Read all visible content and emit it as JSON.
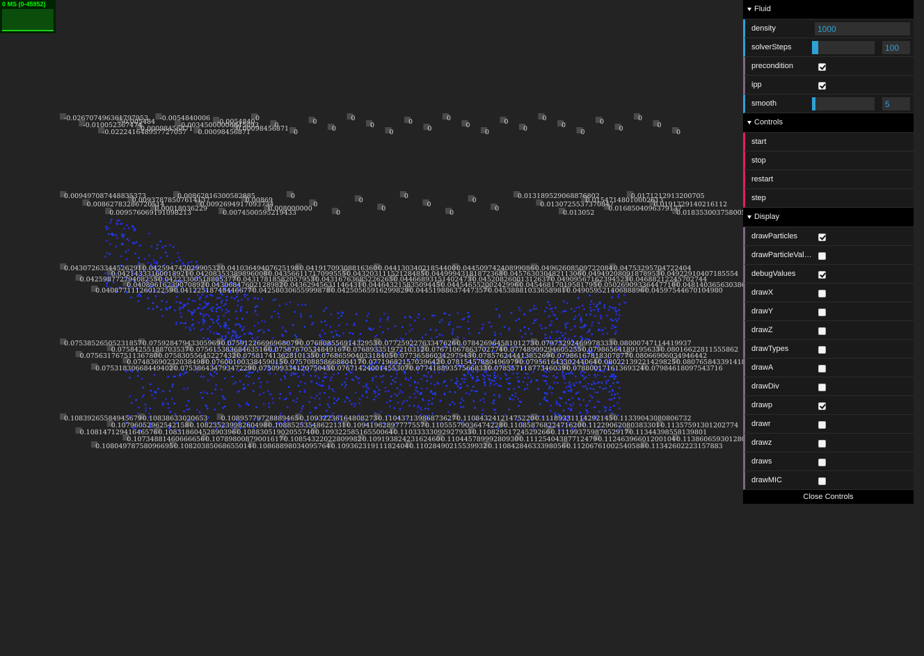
{
  "stats": {
    "label": "0 MS (0-45952)"
  },
  "gui": {
    "folders": [
      {
        "title": "Fluid",
        "rows": [
          {
            "name": "density",
            "kind": "text",
            "value": "1000"
          },
          {
            "name": "solverSteps",
            "kind": "slider",
            "value": "100",
            "fill": 0.1
          },
          {
            "name": "precondition",
            "kind": "bool",
            "checked": true
          },
          {
            "name": "ipp",
            "kind": "bool",
            "checked": true
          },
          {
            "name": "smooth",
            "kind": "slider",
            "value": "5",
            "fill": 0.05
          }
        ]
      },
      {
        "title": "Controls",
        "rows": [
          {
            "name": "start",
            "kind": "func"
          },
          {
            "name": "stop",
            "kind": "func"
          },
          {
            "name": "restart",
            "kind": "func"
          },
          {
            "name": "step",
            "kind": "func"
          }
        ]
      },
      {
        "title": "Display",
        "rows": [
          {
            "name": "drawParticles",
            "kind": "bool",
            "checked": true
          },
          {
            "name": "drawParticleValu…",
            "kind": "bool",
            "checked": false
          },
          {
            "name": "debugValues",
            "kind": "bool",
            "checked": true
          },
          {
            "name": "drawX",
            "kind": "bool",
            "checked": false
          },
          {
            "name": "drawY",
            "kind": "bool",
            "checked": false
          },
          {
            "name": "drawZ",
            "kind": "bool",
            "checked": false
          },
          {
            "name": "drawTypes",
            "kind": "bool",
            "checked": false
          },
          {
            "name": "drawA",
            "kind": "bool",
            "checked": false
          },
          {
            "name": "drawDiv",
            "kind": "bool",
            "checked": false
          },
          {
            "name": "drawp",
            "kind": "bool",
            "checked": true
          },
          {
            "name": "drawr",
            "kind": "bool",
            "checked": false
          },
          {
            "name": "drawz",
            "kind": "bool",
            "checked": false
          },
          {
            "name": "draws",
            "kind": "bool",
            "checked": false
          },
          {
            "name": "drawMIC",
            "kind": "bool",
            "checked": false
          }
        ]
      }
    ],
    "close_label": "Close Controls"
  },
  "debug_labels": {
    "layer1": [
      "-0.026707496361797953",
      "-0.010052367474",
      "-0.022241648957727057",
      "-0.005484",
      "0.00098456871",
      "-0.0054840006",
      "-0.00345000006845693",
      "0.00098456871",
      "-0.0054840",
      "0.00098456871",
      "0",
      "0",
      "0",
      "0",
      "0",
      "0",
      "0",
      "0",
      "0",
      "0",
      "0",
      "0",
      "0",
      "0",
      "0",
      "0",
      "0",
      "0",
      "0",
      "0",
      "0",
      "0",
      "0"
    ],
    "layer2": [
      "0.009497087448835373",
      "0.00862783286720514",
      "0.009576069191098213",
      "0.00937878507614137",
      "0.00018036229",
      "0.00862816300582885",
      "0.0092694917093734",
      "0.0074500595219433",
      "0.00869",
      "0.008000000",
      "0",
      "0",
      "0",
      "0",
      "0",
      "0",
      "0",
      "0",
      "0",
      "0",
      "0.013189529068876802",
      "0.0130725537370847",
      "0.013052",
      "0.01547148010002613",
      "0.0168504096379137",
      "0.0171212913200705",
      "0.0191329140216112",
      "0.0183530037580057"
    ],
    "layer3": [
      "0.04307263344526291",
      "0.04259877279408255",
      "0.04087711126012259",
      "0.04214333160018921",
      "0.04089616239070892",
      "0.04259474202990532",
      "0.04223300518805377",
      "0.04122518748446677",
      "0.04208353389896008",
      "0.04306847602128982",
      "0.04103649407625198",
      "0.04317818582057953",
      "0.04258030655999878",
      "0.04356611717099555",
      "0.04362945631146431",
      "0.04191709308816360",
      "0.04316763685226265",
      "0.04250565916299829",
      "0.04320311152128485",
      "0.04464321583509445",
      "0.04413034021854400",
      "0.04466893151402473",
      "0.04451988637447357",
      "0.04499943181872368",
      "0.04454655200242996",
      "0.04450974240899086",
      "0.04520826001312637",
      "0.04538881033658981",
      "0.04576303048211306",
      "0.04546817019581795",
      "0.04962608509722084",
      "0.04909567162394523",
      "0.04905952140688896",
      "0.04949208091878953",
      "0.05026909336447716",
      "0.04753295704722404",
      "0.04688212245702744",
      "0.04597544670104980",
      "0.04922910407185554",
      "0.04814036563038626"
    ],
    "layer4": [
      "0.07538526505231857",
      "0.07563176751136780",
      "0.07531830668449402",
      "0.07584255188703537",
      "0.07483690232038498",
      "0.07592847943305969",
      "0.07583055645227432",
      "0.07538643479347229",
      "0.07561538368463516",
      "0.07600100338459015",
      "0.07591226696968079",
      "0.07581741362810135",
      "0.07509933412075043",
      "0.07587670534849167",
      "0.07570885866880417",
      "0.07680855691432953",
      "0.07686590403318405",
      "0.07671424001455307",
      "0.07689335197210312",
      "0.07719682157039642",
      "0.07725922763347626",
      "0.07736586034297943",
      "0.07741889357566833",
      "0.07671067863702774",
      "0.07815457880496979",
      "0.07842696458101273",
      "0.07857624441385269",
      "0.07855711877346039",
      "0.07748909294605255",
      "0.07956164330244064",
      "0.07973292469978333",
      "0.07986167818307877",
      "0.07880017161369324",
      "0.07986564189195633",
      "0.08022139221429825",
      "0.08000747114419937",
      "0.08066906034946442",
      "0.07984618097543716",
      "0.08016622811555862",
      "0.08076584339141846"
    ],
    "layer5": [
      "0.10839265584945679",
      "0.10814712941646576",
      "0.10804978758096695",
      "0.10796052962542158",
      "0.10734881460666656",
      "0.10838633030653",
      "0.10831860452890396",
      "0.10820385068655014",
      "0.10823523998260498",
      "0.10789800879001617",
      "0.10895779728889465",
      "0.10883051902055740",
      "0.10868898034095764",
      "0.10885253548622131",
      "0.10854322022809982",
      "0.10932236164808273",
      "0.10932258516550064",
      "0.10936231911182404",
      "0.10941962897777557",
      "0.10919382423162460",
      "0.11043713986873627",
      "0.11033333092927933",
      "0.11028490215539932",
      "0.11055579036474228",
      "0.11044578999280930",
      "0.11084324121475220",
      "0.11082951724529266",
      "0.11084284633398056",
      "0.11085876822471620",
      "0.11125404387712479",
      "0.11189331114292145",
      "0.11199375987052917",
      "0.11206761002540588",
      "0.11229062080383301",
      "0.11246396601200104",
      "0.11339043080806732",
      "0.11344398558139801",
      "0.11342602223157883",
      "0.11357591301202774",
      "0.11386065930128098"
    ]
  }
}
